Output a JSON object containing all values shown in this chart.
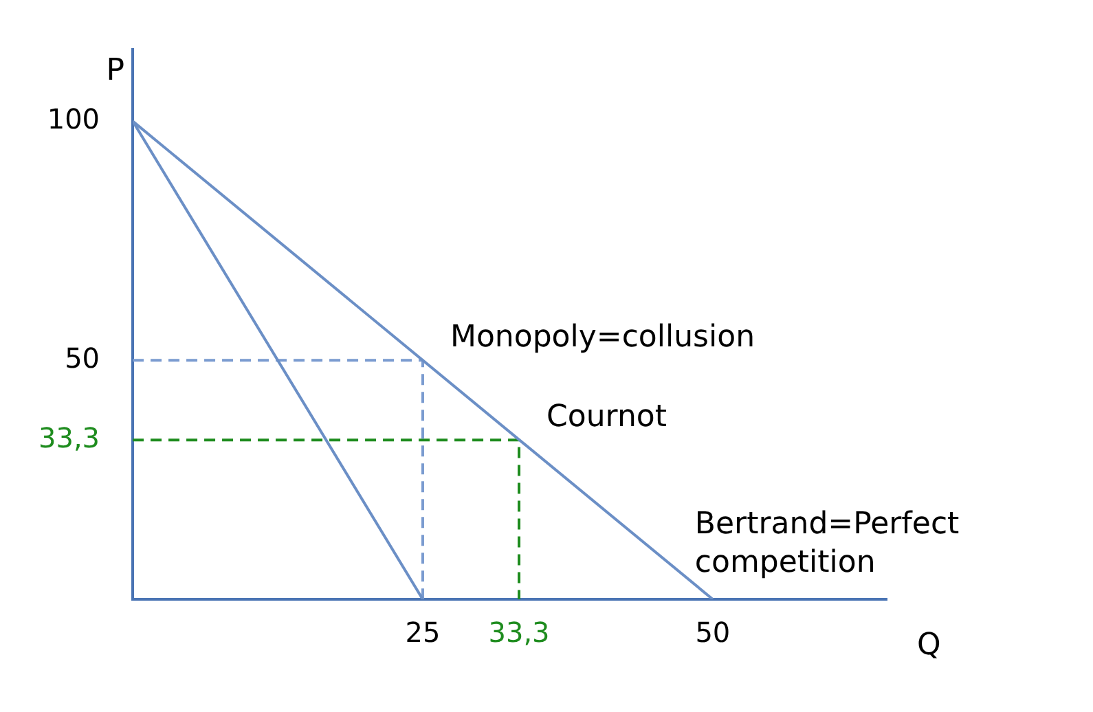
{
  "chart_data": {
    "type": "line",
    "xlabel": "Q",
    "ylabel": "P",
    "xlim": [
      0,
      65
    ],
    "ylim": [
      0,
      115
    ],
    "xticks": [
      25,
      {
        "value": 33.3,
        "label": "33,3"
      },
      50
    ],
    "yticks": [
      {
        "value": 33.3,
        "label": "33,3"
      },
      50,
      100
    ],
    "grid": false,
    "legend": false,
    "marker": "none",
    "series": [
      {
        "x": [
          0,
          50
        ],
        "values": [
          100,
          0
        ],
        "color": "#6b8fc6",
        "line_style": "solid"
      },
      {
        "x": [
          0,
          25
        ],
        "values": [
          100,
          0
        ],
        "color": "#6b8fc6",
        "line_style": "solid"
      },
      {
        "x": [
          0,
          25,
          25
        ],
        "values": [
          50,
          50,
          0
        ],
        "color": "#7a9bd0",
        "line_style": "dashed"
      },
      {
        "x": [
          0,
          33.3,
          33.3
        ],
        "values": [
          33.3,
          33.3,
          0
        ],
        "color": "#1e8c1e",
        "line_style": "dashed"
      }
    ],
    "annotations": [
      {
        "text": "Monopoly=collusion",
        "x": 25,
        "y": 50
      },
      {
        "text": "Cournot",
        "x": 33.3,
        "y": 33.3
      },
      {
        "text": "Bertrand=Perfect competition",
        "x": 50,
        "y": 0
      }
    ]
  }
}
